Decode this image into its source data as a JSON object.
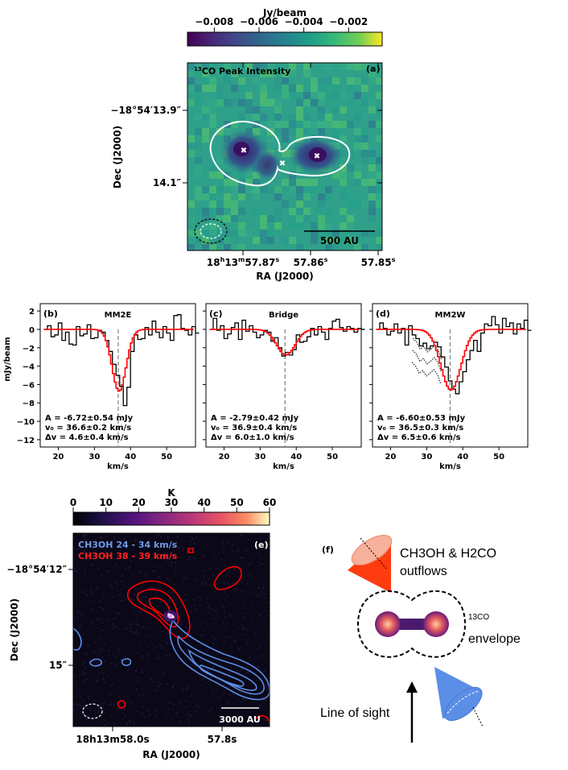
{
  "colors": {
    "red": "#ff0000",
    "blue": "#5b8ee6",
    "white": "#ffffff"
  },
  "panel_a": {
    "label": "(a)",
    "title": "13CO Peak Intensity",
    "title_sup": "13",
    "title_rest": "CO Peak Intensity",
    "colorbar": {
      "label": "Jy/beam",
      "ticks": [
        "−0.008",
        "−0.006",
        "−0.004",
        "−0.002"
      ],
      "range": [
        -0.0092,
        -0.0005
      ]
    },
    "xlabel": "RA (J2000)",
    "ylabel": "Dec (J2000)",
    "xticks": [
      {
        "base": "18",
        "h": "h",
        "base2": "13",
        "m": "m",
        "val": "57.87",
        "s": "s"
      },
      {
        "val": "57.86",
        "s": "s"
      },
      {
        "val": "57.85",
        "s": "s"
      }
    ],
    "yticks": [
      "−18°54′13.9″",
      "14.1″"
    ],
    "scalebar": "500 AU"
  },
  "chart_data": [
    {
      "type": "line",
      "panel": "(b)",
      "title": "MM2E",
      "xlabel": "km/s",
      "ylabel": "mJy/beam",
      "xlim": [
        15,
        58
      ],
      "ylim": [
        -12.8,
        2.8
      ],
      "xticks": [
        "20",
        "30",
        "40",
        "50"
      ],
      "yticks": [
        "2",
        "0",
        "−2",
        "−4",
        "−6",
        "−8",
        "−10",
        "−12"
      ],
      "fit": {
        "A": -6.72,
        "v0": 36.6,
        "dv": 4.6
      },
      "annotations": [
        "A = -6.72±0.54 mJy",
        "v₀ = 36.6±0.2 km/s",
        "Δv = 4.6±0.4 km/s"
      ]
    },
    {
      "type": "line",
      "panel": "(c)",
      "title": "Bridge",
      "xlabel": "km/s",
      "xlim": [
        15,
        58
      ],
      "ylim": [
        -12.8,
        2.8
      ],
      "xticks": [
        "20",
        "30",
        "40",
        "50"
      ],
      "fit": {
        "A": -2.79,
        "v0": 36.9,
        "dv": 6.0
      },
      "annotations": [
        "A = -2.79±0.42 mJy",
        "v₀ = 36.9±0.4 km/s",
        "Δv = 6.0±1.0 km/s"
      ]
    },
    {
      "type": "line",
      "panel": "(d)",
      "title": "MM2W",
      "xlabel": "km/s",
      "xlim": [
        15,
        58
      ],
      "ylim": [
        -12.8,
        2.8
      ],
      "xticks": [
        "20",
        "30",
        "40",
        "50"
      ],
      "fit": {
        "A": -6.6,
        "v0": 36.5,
        "dv": 6.5
      },
      "annotations": [
        "A = -6.60±0.53 mJy",
        "v₀ = 36.5±0.3 km/s",
        "Δv = 6.5±0.6 km/s"
      ]
    }
  ],
  "panel_e": {
    "label": "(e)",
    "colorbar": {
      "label": "K",
      "ticks": [
        "0",
        "10",
        "20",
        "30",
        "40",
        "50",
        "60"
      ]
    },
    "legend_blue": "CH3OH 24 - 34 km/s",
    "legend_red": "CH3OH 38 - 39 km/s",
    "xlabel": "RA (J2000)",
    "ylabel": "Dec (J2000)",
    "xticks": [
      "18h13m58.0s",
      "57.8s"
    ],
    "yticks": [
      "−18°54′12″",
      "15″"
    ],
    "scalebar": "3000 AU"
  },
  "panel_f": {
    "label": "(f)",
    "outflows_line1": "CH3OH & H2CO",
    "outflows_line2": "outflows",
    "envelope_line1": "13CO",
    "envelope_line2": "envelope",
    "los": "Line of sight"
  }
}
